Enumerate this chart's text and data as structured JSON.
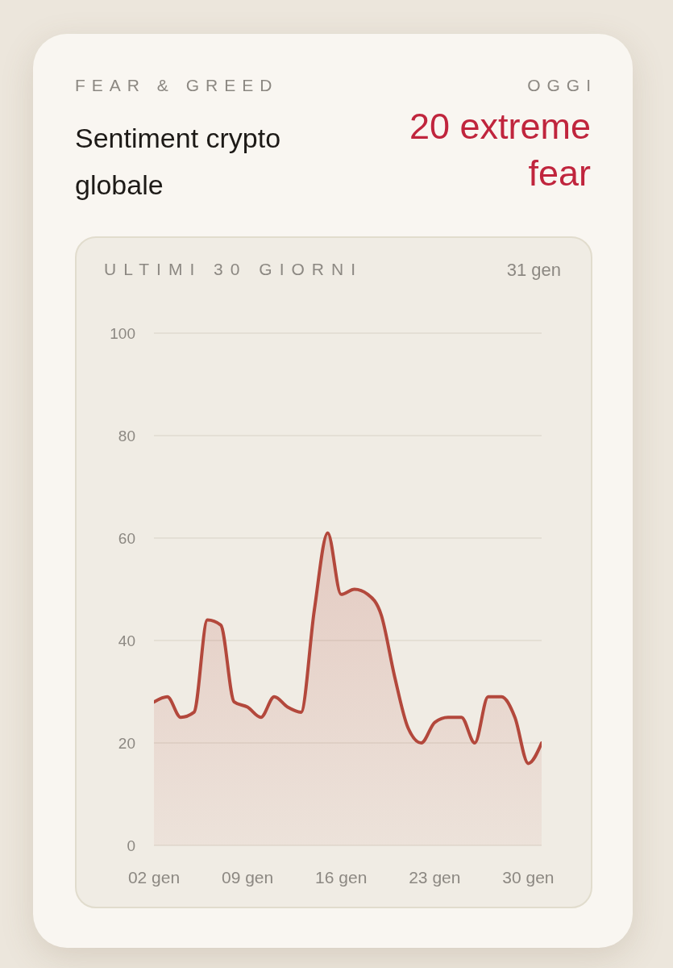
{
  "chart_data": {
    "type": "area",
    "subtitle": "FEAR & GREED",
    "title": "Sentiment crypto globale",
    "annotations": [
      "OGGI",
      "20 extreme fear",
      "ULTIMI 30 GIORNI",
      "31 gen"
    ],
    "x": [
      "--01-02",
      "--01-03",
      "--01-04",
      "--01-05",
      "--01-06",
      "--01-07",
      "--01-08",
      "--01-09",
      "--01-10",
      "--01-11",
      "--01-12",
      "--01-13",
      "--01-14",
      "--01-15",
      "--01-16",
      "--01-17",
      "--01-18",
      "--01-19",
      "--01-20",
      "--01-21",
      "--01-22",
      "--01-23",
      "--01-24",
      "--01-25",
      "--01-26",
      "--01-27",
      "--01-28",
      "--01-29",
      "--01-30",
      "--01-31"
    ],
    "values": [
      28,
      29,
      25,
      26,
      44,
      43,
      28,
      27,
      25,
      29,
      27,
      26,
      46,
      61,
      49,
      50,
      49,
      45,
      33,
      23,
      20,
      24,
      25,
      25,
      20,
      29,
      29,
      25,
      16,
      20
    ],
    "color": "#b3483c",
    "xlim": [
      "--01-02",
      "--01-31"
    ],
    "xticks": [
      {
        "value": "--01-02",
        "label": "02 gen"
      },
      {
        "value": "--01-09",
        "label": "09 gen"
      },
      {
        "value": "--01-16",
        "label": "16 gen"
      },
      {
        "value": "--01-23",
        "label": "23 gen"
      },
      {
        "value": "--01-30",
        "label": "30 gen"
      }
    ],
    "ylim": [
      0,
      100
    ],
    "yticks": [
      0,
      20,
      40,
      60,
      80,
      100
    ],
    "grid": "y"
  }
}
